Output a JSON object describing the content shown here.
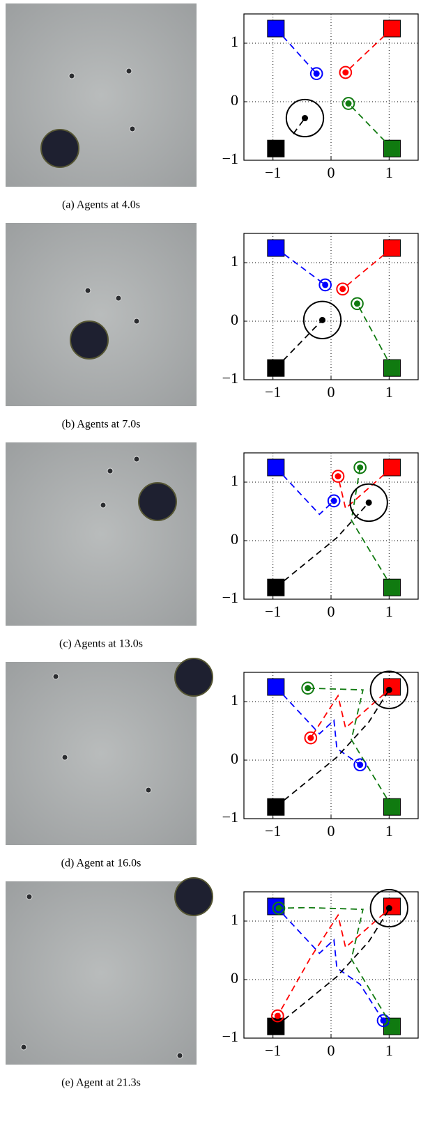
{
  "chart_data": [
    {
      "type": "scatter",
      "caption": "(a) Agents at 4.0s",
      "xlim": [
        -1.5,
        1.5
      ],
      "ylim": [
        -1,
        1.5
      ],
      "xticks": [
        {
          "value": -1,
          "label": "−1"
        },
        0,
        1
      ],
      "yticks": [
        {
          "value": -1,
          "label": "−1"
        },
        0,
        1
      ],
      "grid": true,
      "series": [
        {
          "color": "#0000ff",
          "goal_x": -0.95,
          "goal_y": 1.25,
          "radius": 0.1,
          "x": [
            -0.95,
            -0.25
          ],
          "y": [
            1.25,
            0.48
          ]
        },
        {
          "color": "#ff0000",
          "goal_x": 1.05,
          "goal_y": 1.25,
          "radius": 0.1,
          "x": [
            1.05,
            0.25
          ],
          "y": [
            1.25,
            0.5
          ]
        },
        {
          "color": "#107a10",
          "goal_x": 1.05,
          "goal_y": -0.8,
          "radius": 0.1,
          "x": [
            1.05,
            0.3
          ],
          "y": [
            -0.8,
            -0.03
          ]
        },
        {
          "color": "#000000",
          "goal_x": -0.95,
          "goal_y": -0.8,
          "radius": 0.32,
          "x": [
            -0.65,
            -0.45
          ],
          "y": [
            -0.55,
            -0.28
          ]
        }
      ]
    },
    {
      "type": "scatter",
      "caption": "(b) Agents at 7.0s",
      "xlim": [
        -1.5,
        1.5
      ],
      "ylim": [
        -1,
        1.5
      ],
      "xticks": [
        {
          "value": -1,
          "label": "−1"
        },
        0,
        1
      ],
      "yticks": [
        {
          "value": -1,
          "label": "−1"
        },
        0,
        1
      ],
      "grid": true,
      "series": [
        {
          "color": "#0000ff",
          "goal_x": -0.95,
          "goal_y": 1.25,
          "radius": 0.1,
          "x": [
            -0.95,
            -0.1
          ],
          "y": [
            1.25,
            0.62
          ]
        },
        {
          "color": "#ff0000",
          "goal_x": 1.05,
          "goal_y": 1.25,
          "radius": 0.1,
          "x": [
            1.05,
            0.2
          ],
          "y": [
            1.25,
            0.55
          ]
        },
        {
          "color": "#107a10",
          "goal_x": 1.05,
          "goal_y": -0.8,
          "radius": 0.1,
          "x": [
            1.05,
            0.45
          ],
          "y": [
            -0.8,
            0.3
          ]
        },
        {
          "color": "#000000",
          "goal_x": -0.95,
          "goal_y": -0.8,
          "radius": 0.32,
          "x": [
            -0.95,
            -0.15
          ],
          "y": [
            -0.8,
            0.02
          ]
        }
      ]
    },
    {
      "type": "scatter",
      "caption": "(c) Agents at 13.0s",
      "xlim": [
        -1.5,
        1.5
      ],
      "ylim": [
        -1,
        1.5
      ],
      "xticks": [
        {
          "value": -1,
          "label": "−1"
        },
        0,
        1
      ],
      "yticks": [
        {
          "value": -1,
          "label": "−1"
        },
        0,
        1
      ],
      "grid": true,
      "series": [
        {
          "color": "#0000ff",
          "goal_x": -0.95,
          "goal_y": 1.25,
          "radius": 0.1,
          "x": [
            -0.95,
            -0.2,
            0.05
          ],
          "y": [
            1.25,
            0.45,
            0.68
          ]
        },
        {
          "color": "#ff0000",
          "goal_x": 1.05,
          "goal_y": 1.25,
          "radius": 0.1,
          "x": [
            1.05,
            0.25,
            0.12
          ],
          "y": [
            1.25,
            0.55,
            1.1
          ]
        },
        {
          "color": "#107a10",
          "goal_x": 1.05,
          "goal_y": -0.8,
          "radius": 0.1,
          "x": [
            1.05,
            0.35,
            0.5
          ],
          "y": [
            -0.8,
            0.35,
            1.25
          ]
        },
        {
          "color": "#000000",
          "goal_x": -0.95,
          "goal_y": -0.8,
          "radius": 0.32,
          "x": [
            -0.95,
            0.1,
            0.65
          ],
          "y": [
            -0.8,
            0.05,
            0.65
          ]
        }
      ]
    },
    {
      "type": "scatter",
      "caption": "(d) Agent at 16.0s",
      "xlim": [
        -1.5,
        1.5
      ],
      "ylim": [
        -1,
        1.5
      ],
      "xticks": [
        {
          "value": -1,
          "label": "−1"
        },
        0,
        1
      ],
      "yticks": [
        {
          "value": -1,
          "label": "−1"
        },
        0,
        1
      ],
      "grid": true,
      "series": [
        {
          "color": "#0000ff",
          "goal_x": -0.95,
          "goal_y": 1.25,
          "radius": 0.1,
          "x": [
            -0.95,
            -0.2,
            0.05,
            0.1,
            0.5
          ],
          "y": [
            1.25,
            0.45,
            0.68,
            0.2,
            -0.08
          ]
        },
        {
          "color": "#ff0000",
          "goal_x": 1.05,
          "goal_y": 1.25,
          "radius": 0.1,
          "x": [
            1.05,
            0.25,
            0.12,
            -0.35
          ],
          "y": [
            1.25,
            0.55,
            1.1,
            0.38
          ]
        },
        {
          "color": "#107a10",
          "goal_x": 1.05,
          "goal_y": -0.8,
          "radius": 0.1,
          "x": [
            1.05,
            0.35,
            0.55,
            -0.4
          ],
          "y": [
            -0.8,
            0.35,
            1.2,
            1.23
          ]
        },
        {
          "color": "#000000",
          "goal_x": -0.95,
          "goal_y": -0.8,
          "radius": 0.32,
          "x": [
            -0.95,
            0.1,
            0.65,
            1.0
          ],
          "y": [
            -0.8,
            0.05,
            0.65,
            1.2
          ]
        }
      ]
    },
    {
      "type": "scatter",
      "caption": "(e) Agent at 21.3s",
      "xlim": [
        -1.5,
        1.5
      ],
      "ylim": [
        -1,
        1.5
      ],
      "xticks": [
        {
          "value": -1,
          "label": "−1"
        },
        0,
        1
      ],
      "yticks": [
        {
          "value": -1,
          "label": "−1"
        },
        0,
        1
      ],
      "grid": true,
      "series": [
        {
          "color": "#0000ff",
          "goal_x": -0.95,
          "goal_y": 1.25,
          "radius": 0.1,
          "x": [
            -0.95,
            -0.2,
            0.05,
            0.1,
            0.5,
            0.9
          ],
          "y": [
            1.25,
            0.45,
            0.68,
            0.2,
            -0.08,
            -0.7
          ]
        },
        {
          "color": "#ff0000",
          "goal_x": 1.05,
          "goal_y": 1.25,
          "radius": 0.1,
          "x": [
            1.05,
            0.25,
            0.12,
            -0.35,
            -0.92
          ],
          "y": [
            1.25,
            0.55,
            1.1,
            0.38,
            -0.62
          ]
        },
        {
          "color": "#107a10",
          "goal_x": 1.05,
          "goal_y": -0.8,
          "radius": 0.1,
          "x": [
            1.05,
            0.35,
            0.55,
            -0.4,
            -0.9
          ],
          "y": [
            -0.8,
            0.35,
            1.2,
            1.23,
            1.22
          ]
        },
        {
          "color": "#000000",
          "goal_x": -0.95,
          "goal_y": -0.8,
          "radius": 0.32,
          "x": [
            -0.95,
            0.1,
            0.65,
            1.0,
            1.0
          ],
          "y": [
            -0.8,
            0.05,
            0.65,
            1.2,
            1.22
          ]
        }
      ]
    }
  ]
}
